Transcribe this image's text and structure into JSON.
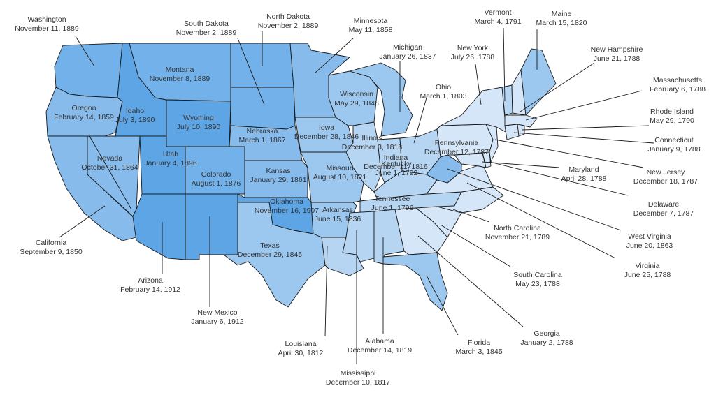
{
  "colors": {
    "1780s": "#d5e6f8",
    "1790s_1810s": "#b5d5f2",
    "1820s_1840s": "#9cc7ef",
    "1850s_1860s": "#86bbec",
    "1870s_1880s": "#72b1ea",
    "1890s_1910s": "#5ea5e6",
    "border": "#1a1a1a",
    "text": "#333333"
  },
  "states": {
    "washington": {
      "name": "Washington",
      "date": "November 11, 1889",
      "era": "1870s_1880s"
    },
    "oregon": {
      "name": "Oregon",
      "date": "February 14, 1859",
      "era": "1850s_1860s"
    },
    "california": {
      "name": "California",
      "date": "September 9, 1850",
      "era": "1850s_1860s"
    },
    "nevada": {
      "name": "Nevada",
      "date": "October 31, 1864",
      "era": "1850s_1860s"
    },
    "idaho": {
      "name": "Idaho",
      "date": "July 3, 1890",
      "era": "1890s_1910s"
    },
    "montana": {
      "name": "Montana",
      "date": "November 8, 1889",
      "era": "1870s_1880s"
    },
    "wyoming": {
      "name": "Wyoming",
      "date": "July 10, 1890",
      "era": "1890s_1910s"
    },
    "utah": {
      "name": "Utah",
      "date": "January 4, 1896",
      "era": "1890s_1910s"
    },
    "colorado": {
      "name": "Colorado",
      "date": "August 1, 1876",
      "era": "1870s_1880s"
    },
    "arizona": {
      "name": "Arizona",
      "date": "February 14, 1912",
      "era": "1890s_1910s"
    },
    "new_mexico": {
      "name": "New Mexico",
      "date": "January 6, 1912",
      "era": "1890s_1910s"
    },
    "north_dakota": {
      "name": "North Dakota",
      "date": "November 2, 1889",
      "era": "1870s_1880s"
    },
    "south_dakota": {
      "name": "South Dakota",
      "date": "November 2, 1889",
      "era": "1870s_1880s"
    },
    "nebraska": {
      "name": "Nebraska",
      "date": "March 1, 1867",
      "era": "1850s_1860s"
    },
    "kansas": {
      "name": "Kansas",
      "date": "January 29, 1861",
      "era": "1850s_1860s"
    },
    "oklahoma": {
      "name": "Oklahoma",
      "date": "November 16, 1907",
      "era": "1890s_1910s"
    },
    "texas": {
      "name": "Texas",
      "date": "December 29, 1845",
      "era": "1820s_1840s"
    },
    "minnesota": {
      "name": "Minnesota",
      "date": "May 11, 1858",
      "era": "1850s_1860s"
    },
    "iowa": {
      "name": "Iowa",
      "date": "December 28, 1846",
      "era": "1820s_1840s"
    },
    "missouri": {
      "name": "Missouri",
      "date": "August 10, 1821",
      "era": "1820s_1840s"
    },
    "arkansas": {
      "name": "Arkansas",
      "date": "June 15, 1836",
      "era": "1820s_1840s"
    },
    "louisiana": {
      "name": "Louisiana",
      "date": "April 30, 1812",
      "era": "1790s_1810s"
    },
    "wisconsin": {
      "name": "Wisconsin",
      "date": "May 29, 1848",
      "era": "1820s_1840s"
    },
    "illinois": {
      "name": "Illinois",
      "date": "December 3, 1818",
      "era": "1790s_1810s"
    },
    "michigan": {
      "name": "Michigan",
      "date": "January 26, 1837",
      "era": "1820s_1840s"
    },
    "indiana": {
      "name": "Indiana",
      "date": "December 11, 1816",
      "era": "1790s_1810s"
    },
    "ohio": {
      "name": "Ohio",
      "date": "March 1, 1803",
      "era": "1790s_1810s"
    },
    "kentucky": {
      "name": "Kentucky",
      "date": "June 1, 1792",
      "era": "1790s_1810s"
    },
    "tennessee": {
      "name": "Tennessee",
      "date": "June 1, 1796",
      "era": "1790s_1810s"
    },
    "mississippi": {
      "name": "Mississippi",
      "date": "December 10, 1817",
      "era": "1790s_1810s"
    },
    "alabama": {
      "name": "Alabama",
      "date": "December 14, 1819",
      "era": "1790s_1810s"
    },
    "florida": {
      "name": "Florida",
      "date": "March 3, 1845",
      "era": "1820s_1840s"
    },
    "georgia": {
      "name": "Georgia",
      "date": "January 2, 1788",
      "era": "1780s"
    },
    "south_carolina": {
      "name": "South Carolina",
      "date": "May 23, 1788",
      "era": "1780s"
    },
    "north_carolina": {
      "name": "North Carolina",
      "date": "November 21, 1789",
      "era": "1780s"
    },
    "virginia": {
      "name": "Virginia",
      "date": "June 25, 1788",
      "era": "1780s"
    },
    "west_virginia": {
      "name": "West Virginia",
      "date": "June 20, 1863",
      "era": "1850s_1860s"
    },
    "maryland": {
      "name": "Maryland",
      "date": "April 28, 1788",
      "era": "1780s"
    },
    "delaware": {
      "name": "Delaware",
      "date": "December 7, 1787",
      "era": "1780s"
    },
    "pennsylvania": {
      "name": "Pennsylvania",
      "date": "December 12, 1787",
      "era": "1780s"
    },
    "new_jersey": {
      "name": "New Jersey",
      "date": "December 18, 1787",
      "era": "1780s"
    },
    "new_york": {
      "name": "New York",
      "date": "July 26, 1788",
      "era": "1780s"
    },
    "connecticut": {
      "name": "Connecticut",
      "date": "January 9, 1788",
      "era": "1780s"
    },
    "rhode_island": {
      "name": "Rhode Island",
      "date": "May 29, 1790",
      "era": "1780s"
    },
    "massachusetts": {
      "name": "Massachusetts",
      "date": "February 6, 1788",
      "era": "1780s"
    },
    "vermont": {
      "name": "Vermont",
      "date": "March 4, 1791",
      "era": "1790s_1810s"
    },
    "new_hampshire": {
      "name": "New Hampshire",
      "date": "June 21, 1788",
      "era": "1780s"
    },
    "maine": {
      "name": "Maine",
      "date": "March 15, 1820",
      "era": "1820s_1840s"
    }
  }
}
